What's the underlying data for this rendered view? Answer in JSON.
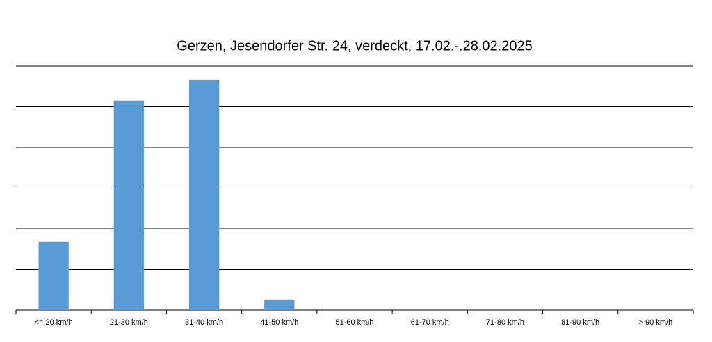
{
  "chart_data": {
    "type": "bar",
    "title": "Gerzen, Jesendorfer Str. 24, verdeckt, 17.02.-.28.02.2025",
    "categories": [
      "<= 20 km/h",
      "21-30 km/h",
      "31-40 km/h",
      "41-50 km/h",
      "51-60 km/h",
      "61-70 km/h",
      "71-80 km/h",
      "81-90 km/h",
      "> 90 km/h"
    ],
    "values": [
      1.68,
      5.15,
      5.66,
      0.26,
      0,
      0,
      0,
      0,
      0
    ],
    "color": "#5b9bd5",
    "ylim": [
      0,
      6
    ],
    "yticks": [
      0,
      1,
      2,
      3,
      4,
      5,
      6
    ],
    "ytick_labels": false,
    "grid": true
  }
}
